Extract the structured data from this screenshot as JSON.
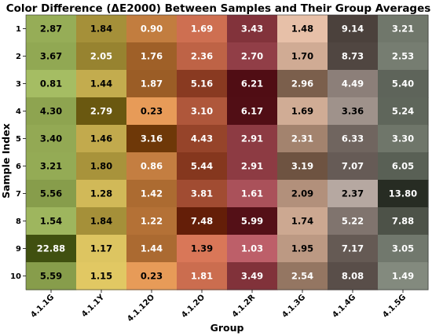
{
  "chart_data": {
    "type": "heatmap",
    "title": "Color Difference (ΔE2000) Between Samples and Their Group Averages",
    "xlabel": "Group",
    "ylabel": "Sample Index",
    "columns": [
      "4.1.1G",
      "4.1.1Y",
      "4.1.12O",
      "4.1.2O",
      "4.1.2R",
      "4.1.3G",
      "4.1.4G",
      "4.1.5G"
    ],
    "rows": [
      "1",
      "2",
      "3",
      "4",
      "5",
      "6",
      "7",
      "8",
      "9",
      "10"
    ],
    "values": [
      [
        2.87,
        1.84,
        0.9,
        1.69,
        3.43,
        1.48,
        9.14,
        3.21
      ],
      [
        3.67,
        2.05,
        1.76,
        2.36,
        2.7,
        1.7,
        8.73,
        2.53
      ],
      [
        0.81,
        1.44,
        1.87,
        5.16,
        6.21,
        2.96,
        4.49,
        5.4
      ],
      [
        4.3,
        2.79,
        0.23,
        3.1,
        6.17,
        1.69,
        3.36,
        5.24
      ],
      [
        3.4,
        1.46,
        3.16,
        4.43,
        2.91,
        2.31,
        6.33,
        3.3
      ],
      [
        3.21,
        1.8,
        0.86,
        5.44,
        2.91,
        3.19,
        7.07,
        6.05
      ],
      [
        5.56,
        1.28,
        1.42,
        3.81,
        1.61,
        2.09,
        2.37,
        13.8
      ],
      [
        1.54,
        1.84,
        1.22,
        7.48,
        5.99,
        1.74,
        5.22,
        7.88
      ],
      [
        22.88,
        1.17,
        1.44,
        1.39,
        1.03,
        1.95,
        7.17,
        3.05
      ],
      [
        5.59,
        1.15,
        0.23,
        1.81,
        3.49,
        2.54,
        8.08,
        1.49
      ]
    ],
    "labels": [
      [
        "2.87",
        "1.84",
        "0.90",
        "1.69",
        "3.43",
        "1.48",
        "9.14",
        "3.21"
      ],
      [
        "3.67",
        "2.05",
        "1.76",
        "2.36",
        "2.70",
        "1.70",
        "8.73",
        "2.53"
      ],
      [
        "0.81",
        "1.44",
        "1.87",
        "5.16",
        "6.21",
        "2.96",
        "4.49",
        "5.40"
      ],
      [
        "4.30",
        "2.79",
        "0.23",
        "3.10",
        "6.17",
        "1.69",
        "3.36",
        "5.24"
      ],
      [
        "3.40",
        "1.46",
        "3.16",
        "4.43",
        "2.91",
        "2.31",
        "6.33",
        "3.30"
      ],
      [
        "3.21",
        "1.80",
        "0.86",
        "5.44",
        "2.91",
        "3.19",
        "7.07",
        "6.05"
      ],
      [
        "5.56",
        "1.28",
        "1.42",
        "3.81",
        "1.61",
        "2.09",
        "2.37",
        "13.80"
      ],
      [
        "1.54",
        "1.84",
        "1.22",
        "7.48",
        "5.99",
        "1.74",
        "5.22",
        "7.88"
      ],
      [
        "22.88",
        "1.17",
        "1.44",
        "1.39",
        "1.03",
        "1.95",
        "7.17",
        "3.05"
      ],
      [
        "5.59",
        "1.15",
        "0.23",
        "1.81",
        "3.49",
        "2.54",
        "8.08",
        "1.49"
      ]
    ],
    "column_base_colors": [
      "#7fa020",
      "#d4b020",
      "#dc7010",
      "#c83c10",
      "#a01a28",
      "#dca582",
      "#968278",
      "#4e5846"
    ],
    "grid": false,
    "legend": "none"
  }
}
